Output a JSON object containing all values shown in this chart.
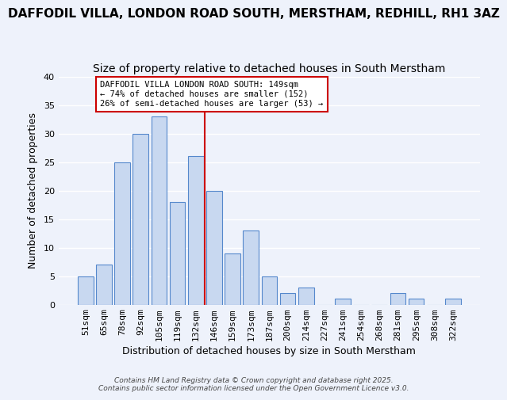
{
  "title1": "DAFFODIL VILLA, LONDON ROAD SOUTH, MERSTHAM, REDHILL, RH1 3AZ",
  "title2": "Size of property relative to detached houses in South Merstham",
  "xlabel": "Distribution of detached houses by size in South Merstham",
  "ylabel": "Number of detached properties",
  "bin_labels": [
    "51sqm",
    "65sqm",
    "78sqm",
    "92sqm",
    "105sqm",
    "119sqm",
    "132sqm",
    "146sqm",
    "159sqm",
    "173sqm",
    "187sqm",
    "200sqm",
    "214sqm",
    "227sqm",
    "241sqm",
    "254sqm",
    "268sqm",
    "281sqm",
    "295sqm",
    "308sqm",
    "322sqm"
  ],
  "bar_heights": [
    5,
    7,
    25,
    30,
    33,
    18,
    26,
    20,
    9,
    13,
    5,
    2,
    3,
    0,
    1,
    0,
    0,
    2,
    1,
    0,
    1
  ],
  "bar_color": "#c8d8f0",
  "bar_edge_color": "#5588cc",
  "vline_x": 6.5,
  "vline_color": "#cc0000",
  "ylim": [
    0,
    40
  ],
  "yticks": [
    0,
    5,
    10,
    15,
    20,
    25,
    30,
    35,
    40
  ],
  "annotation_title": "DAFFODIL VILLA LONDON ROAD SOUTH: 149sqm",
  "annotation_line1": "← 74% of detached houses are smaller (152)",
  "annotation_line2": "26% of semi-detached houses are larger (53) →",
  "footer1": "Contains HM Land Registry data © Crown copyright and database right 2025.",
  "footer2": "Contains public sector information licensed under the Open Government Licence v3.0.",
  "bg_color": "#eef2fb",
  "grid_color": "#ffffff",
  "title_fontsize": 11,
  "subtitle_fontsize": 10,
  "axis_label_fontsize": 9,
  "tick_fontsize": 8
}
